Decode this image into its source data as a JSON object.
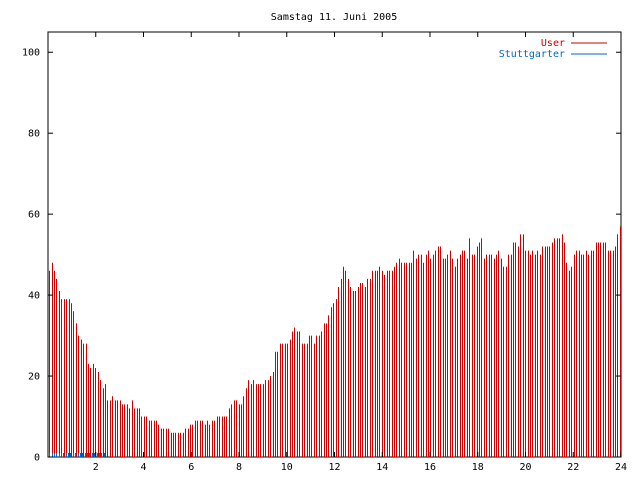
{
  "chart_data": {
    "type": "bar",
    "title": "Samstag 11. Juni 2005",
    "xlabel": "",
    "ylabel": "",
    "xlim": [
      0,
      24
    ],
    "ylim": [
      0,
      105
    ],
    "x_ticks": [
      2,
      4,
      6,
      8,
      10,
      12,
      14,
      16,
      18,
      20,
      22,
      24
    ],
    "y_ticks": [
      0,
      20,
      40,
      60,
      80,
      100
    ],
    "grid": false,
    "legend_position": "top-right",
    "series": [
      {
        "name": "User",
        "color": "#cc0000",
        "values": [
          46,
          48,
          46,
          44,
          41,
          39,
          39,
          39,
          39,
          38,
          36,
          33,
          30,
          29,
          28,
          28,
          23,
          22,
          23,
          22,
          21,
          19,
          17,
          18,
          14,
          14,
          15,
          14,
          14,
          14,
          13,
          13,
          13,
          12,
          14,
          12,
          12,
          12,
          10,
          10,
          10,
          9,
          9,
          9,
          9,
          8,
          7,
          7,
          7,
          7,
          6,
          6,
          6,
          6,
          6,
          6,
          7,
          7,
          8,
          8,
          9,
          9,
          9,
          9,
          8,
          9,
          8,
          9,
          9,
          10,
          10,
          10,
          10,
          10,
          12,
          13,
          14,
          14,
          13,
          13,
          15,
          17,
          19,
          18,
          19,
          18,
          18,
          18,
          18,
          19,
          19,
          20,
          21,
          26,
          26,
          28,
          28,
          28,
          28,
          29,
          31,
          32,
          31,
          31,
          28,
          28,
          28,
          30,
          30,
          28,
          30,
          30,
          31,
          33,
          33,
          35,
          37,
          38,
          39,
          42,
          44,
          47,
          46,
          44,
          42,
          41,
          41,
          42,
          43,
          43,
          42,
          44,
          44,
          46,
          46,
          46,
          47,
          46,
          45,
          46,
          46,
          46,
          47,
          48,
          49,
          48,
          48,
          48,
          48,
          48,
          51,
          49,
          50,
          50,
          48,
          50,
          51,
          49,
          50,
          51,
          52,
          52,
          49,
          49,
          50,
          51,
          49,
          47,
          49,
          50,
          51,
          51,
          49,
          54,
          50,
          50,
          52,
          53,
          54,
          49,
          50,
          50,
          50,
          49,
          50,
          51,
          49,
          47,
          47,
          50,
          50,
          53,
          53,
          52,
          55,
          55,
          51,
          51,
          50,
          51,
          50,
          51,
          50,
          52,
          52,
          52,
          52,
          53,
          54,
          54,
          54,
          55,
          53,
          48,
          46,
          47,
          50,
          51,
          51,
          50,
          50,
          51,
          50,
          51,
          51,
          53,
          53,
          53,
          53,
          53,
          51,
          51,
          51,
          52,
          55,
          57
        ]
      },
      {
        "name": "Stuttgarter",
        "color": "#0066cc",
        "values": [
          1,
          1,
          1,
          1,
          1,
          1,
          1,
          1,
          1,
          1,
          1,
          1,
          1,
          1,
          1,
          1,
          1,
          1,
          1,
          1,
          1,
          1,
          1,
          1,
          0,
          0,
          0,
          0,
          0,
          0,
          0,
          0,
          0,
          0,
          0,
          0,
          0,
          0,
          0,
          0,
          0,
          0,
          0,
          0,
          0,
          0,
          0,
          0,
          0,
          0,
          0,
          0,
          0,
          0,
          0,
          0,
          0,
          0,
          0,
          0,
          0,
          0,
          0,
          0,
          0,
          0,
          0,
          0,
          0,
          0,
          0,
          0,
          0,
          0,
          0,
          0,
          0,
          0,
          0,
          0,
          0,
          0,
          0,
          0,
          0,
          0,
          0,
          0,
          0,
          0,
          0,
          0,
          0,
          0,
          0,
          0,
          0,
          0,
          0,
          0,
          0,
          0,
          0,
          0,
          0,
          0,
          0,
          0,
          0,
          0,
          0,
          0,
          0,
          0,
          0,
          0,
          0,
          0,
          0,
          0,
          0,
          0,
          0,
          0,
          0,
          0,
          0,
          0,
          0,
          0,
          0,
          0,
          0,
          0,
          0,
          0,
          0,
          0,
          0,
          0,
          0,
          0,
          0,
          0,
          0,
          0,
          0,
          0,
          0,
          0,
          0,
          0,
          0,
          0,
          0,
          0,
          0,
          0,
          0,
          0,
          0,
          0,
          0,
          0,
          0,
          0,
          0,
          0,
          0,
          0,
          0,
          0,
          0,
          0,
          0,
          0,
          0,
          0,
          0,
          0,
          0,
          0,
          0,
          0,
          0,
          0,
          0,
          0,
          0,
          0,
          0,
          0,
          0,
          0,
          0,
          0,
          0,
          0,
          0,
          0,
          0,
          0,
          0,
          0,
          0,
          0,
          0,
          0,
          0,
          0,
          0,
          0,
          0,
          0,
          0,
          0,
          0,
          0,
          0,
          0,
          0,
          0,
          0,
          0,
          0,
          0,
          0,
          0,
          0,
          0,
          0,
          0,
          0,
          0,
          0,
          0,
          0,
          0,
          0,
          0,
          0,
          0
        ]
      }
    ]
  }
}
